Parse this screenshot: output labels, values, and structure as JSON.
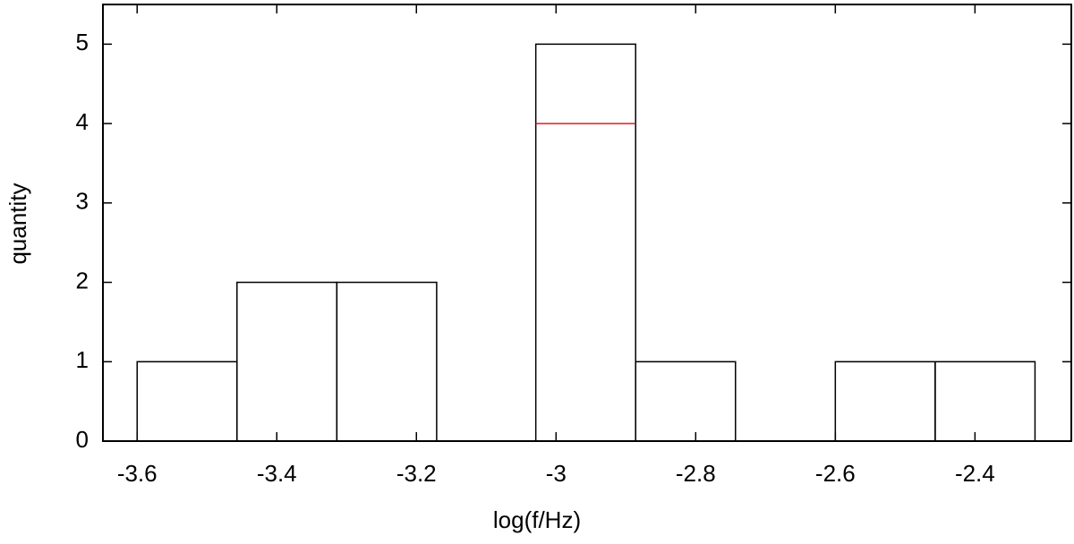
{
  "chart_data": {
    "type": "histogram",
    "xlabel": "log(f/Hz)",
    "ylabel": "quantity",
    "bins": [
      -3.6,
      -3.457,
      -3.314,
      -3.171,
      -3.029,
      -2.886,
      -2.743,
      -2.6,
      -2.457,
      -2.314
    ],
    "series": [
      {
        "color": "#000000",
        "values": [
          1,
          2,
          2,
          0,
          5,
          1,
          0,
          1,
          1
        ]
      },
      {
        "color": "#e41a1c",
        "values": [
          null,
          null,
          null,
          null,
          4,
          null,
          null,
          null,
          null
        ]
      }
    ],
    "xlim": [
      -3.649,
      -2.262
    ],
    "ylim": [
      0,
      5.5
    ],
    "xticks": [
      -3.6,
      -3.4,
      -3.2,
      -3,
      -2.8,
      -2.6,
      -2.4
    ],
    "yticks": [
      0,
      1,
      2,
      3,
      4,
      5
    ]
  }
}
